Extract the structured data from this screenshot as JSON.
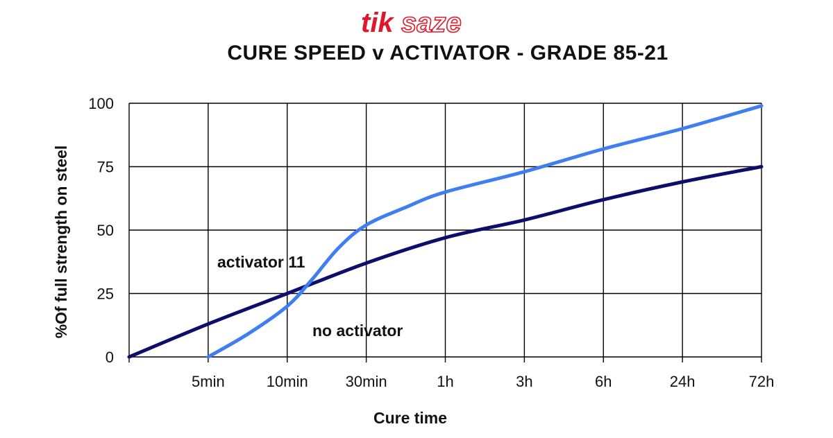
{
  "brand": {
    "logo_text": "tiksaze",
    "part1": "tik",
    "part2": "saze"
  },
  "chart_data": {
    "type": "line",
    "title": "CURE SPEED v ACTIVATOR - GRADE 85-21",
    "xlabel": "Cure time",
    "ylabel": "%Of full  strength on steel",
    "categories": [
      "",
      "5min",
      "10min",
      "30min",
      "1h",
      "3h",
      "6h",
      "24h",
      "72h"
    ],
    "ylim": [
      0,
      100
    ],
    "yticks": [
      0,
      25,
      50,
      75,
      100
    ],
    "grid": true,
    "series": [
      {
        "color": "#0d0d6b",
        "points": [
          [
            0,
            0
          ],
          [
            1,
            13
          ],
          [
            2,
            25
          ],
          [
            3,
            37
          ],
          [
            4,
            47
          ],
          [
            5,
            54
          ],
          [
            6,
            62
          ],
          [
            7,
            69
          ],
          [
            8,
            75
          ]
        ]
      },
      {
        "color": "#3f7ef0",
        "points": [
          [
            1,
            0
          ],
          [
            1.5,
            9
          ],
          [
            2,
            20
          ],
          [
            2.3,
            30
          ],
          [
            2.65,
            43
          ],
          [
            3,
            52
          ],
          [
            3.5,
            59
          ],
          [
            4,
            65
          ],
          [
            5,
            73
          ],
          [
            6,
            82
          ],
          [
            7,
            90
          ],
          [
            8,
            99
          ]
        ]
      }
    ],
    "annotations": [
      {
        "text": "activator 11"
      },
      {
        "text": "no activator"
      }
    ],
    "colors": {
      "grid": "#000000",
      "background": "#ffffff"
    }
  }
}
